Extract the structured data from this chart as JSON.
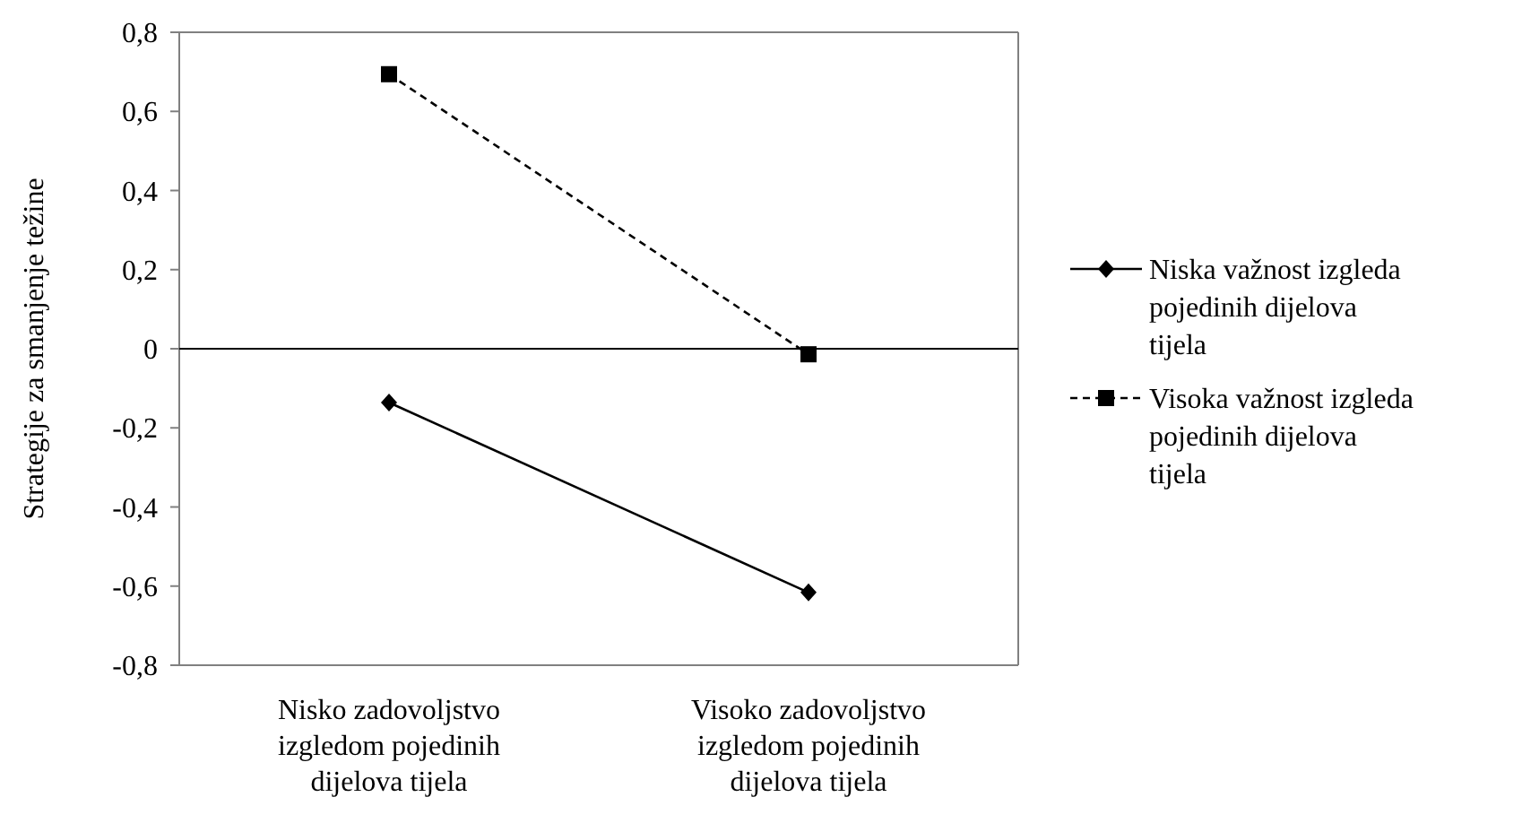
{
  "chart_data": {
    "type": "line",
    "ylabel": "Strategije za smanjenje težine",
    "categories": [
      "Nisko zadovoljstvo izgledom pojedinih dijelova tijela",
      "Visoko zadovoljstvo izgledom pojedinih dijelova tijela"
    ],
    "series": [
      {
        "name": "Niska važnost izgleda pojedinih dijelova tijela",
        "color": "#000000",
        "values": [
          -0.136,
          -0.616
        ],
        "marker": "diamond",
        "line_style": "solid"
      },
      {
        "name": "Visoka važnost izgleda pojedinih dijelova tijela",
        "color": "#000000",
        "values": [
          0.694,
          -0.014
        ],
        "marker": "square",
        "line_style": "dashed"
      }
    ],
    "ylim": [
      -0.8,
      0.8
    ],
    "yticks": [
      {
        "value": -0.8,
        "label": "-0,8"
      },
      {
        "value": -0.6,
        "label": "-0,6"
      },
      {
        "value": -0.4,
        "label": "-0,4"
      },
      {
        "value": -0.2,
        "label": "-0,2"
      },
      0,
      {
        "value": 0.2,
        "label": "0,2"
      },
      {
        "value": 0.4,
        "label": "0,4"
      },
      {
        "value": 0.6,
        "label": "0,6"
      },
      {
        "value": 0.8,
        "label": "0,8"
      }
    ],
    "legend": "right"
  }
}
